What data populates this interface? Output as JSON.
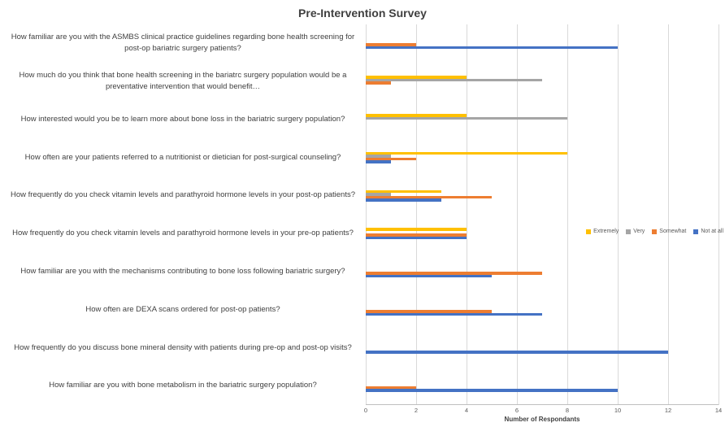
{
  "chart_data": {
    "type": "bar",
    "orientation": "horizontal",
    "title": "Pre-Intervention Survey",
    "xlabel": "Number of Respondants",
    "xlim": [
      0,
      14
    ],
    "xticks": [
      0,
      2,
      4,
      6,
      8,
      10,
      12,
      14
    ],
    "grid": true,
    "legend_position": "right-middle",
    "categories": [
      "How familiar are you with the ASMBS clinical practice guidelines regarding bone health screening for post-op bariatric surgery patients?",
      "How much do you think that bone health screening in the bariatrc surgery population would be a preventative intervention that would benefit…",
      "How interested would you be to learn more about bone loss in the bariatric surgery population?",
      "How often are your patients referred to a nutritionist or dietician for post-surgical counseling?",
      "How frequently do you check vitamin levels and parathyroid hormone levels in your post-op patients?",
      "How frequently do you check vitamin levels and parathyroid hormone levels in your pre-op patients?",
      "How familiar are you with the mechanisms contributing to bone loss following bariatric surgery?",
      "How often are DEXA scans ordered for post-op patients?",
      "How frequently do you discuss bone mineral density with patients during pre-op and post-op visits?",
      "How familiar are you with bone metabolism in the bariatric surgery population?"
    ],
    "series": [
      {
        "name": "Extremely",
        "color": "#FFC000",
        "values": [
          0,
          4,
          4,
          8,
          3,
          4,
          0,
          0,
          0,
          0
        ]
      },
      {
        "name": "Very",
        "color": "#A5A5A5",
        "values": [
          0,
          7,
          8,
          1,
          1,
          0,
          0,
          0,
          0,
          0
        ]
      },
      {
        "name": "Somewhat",
        "color": "#ED7D31",
        "values": [
          2,
          1,
          0,
          2,
          5,
          4,
          7,
          5,
          0,
          2
        ]
      },
      {
        "name": "Not at all",
        "color": "#4472C4",
        "values": [
          10,
          0,
          0,
          1,
          3,
          4,
          5,
          7,
          12,
          10
        ]
      }
    ]
  },
  "colors": {
    "gridline": "#d9d9d9",
    "axis_line": "#bfbfbf",
    "title_text": "#404040",
    "label_text": "#404040",
    "tick_text": "#595959"
  }
}
